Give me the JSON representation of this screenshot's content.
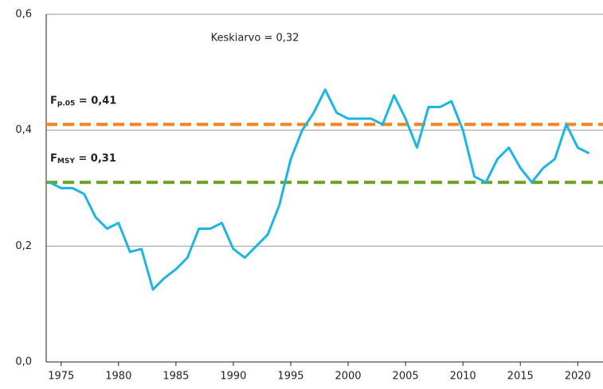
{
  "chart_data": {
    "type": "line",
    "annotation": "Keskiarvo = 0,32",
    "x": [
      1974,
      1975,
      1976,
      1977,
      1978,
      1979,
      1980,
      1981,
      1982,
      1983,
      1984,
      1985,
      1986,
      1987,
      1988,
      1989,
      1990,
      1991,
      1992,
      1993,
      1994,
      1995,
      1996,
      1997,
      1998,
      1999,
      2000,
      2001,
      2002,
      2003,
      2004,
      2005,
      2006,
      2007,
      2008,
      2009,
      2010,
      2011,
      2012,
      2013,
      2014,
      2015,
      2016,
      2017,
      2018,
      2019,
      2020,
      2021
    ],
    "values": [
      0.31,
      0.3,
      0.3,
      0.29,
      0.25,
      0.23,
      0.24,
      0.19,
      0.195,
      0.125,
      0.145,
      0.16,
      0.18,
      0.23,
      0.23,
      0.24,
      0.195,
      0.18,
      0.2,
      0.22,
      0.27,
      0.35,
      0.4,
      0.43,
      0.47,
      0.43,
      0.42,
      0.42,
      0.42,
      0.41,
      0.46,
      0.42,
      0.37,
      0.44,
      0.44,
      0.45,
      0.4,
      0.32,
      0.31,
      0.35,
      0.37,
      0.335,
      0.31,
      0.335,
      0.35,
      0.41,
      0.37,
      0.36
    ],
    "color": "#1fb5e0",
    "reference_lines": [
      {
        "value": 0.41,
        "color": "#f58220",
        "symbol": "F",
        "subscript": "p.05",
        "text": " = 0,41"
      },
      {
        "value": 0.31,
        "color": "#6aa121",
        "symbol": "F",
        "subscript": "MSY",
        "text": " = 0,31"
      }
    ],
    "xlim": [
      1973.7,
      2022.2
    ],
    "xticks": [
      1975,
      1980,
      1985,
      1990,
      1995,
      2000,
      2005,
      2010,
      2015,
      2020
    ],
    "ylim": [
      0,
      0.6
    ],
    "yticks": [
      {
        "value": 0,
        "label": "0,0"
      },
      {
        "value": 0.2,
        "label": "0,2"
      },
      {
        "value": 0.4,
        "label": "0,4"
      },
      {
        "value": 0.6,
        "label": "0,6"
      }
    ],
    "grid": true
  }
}
